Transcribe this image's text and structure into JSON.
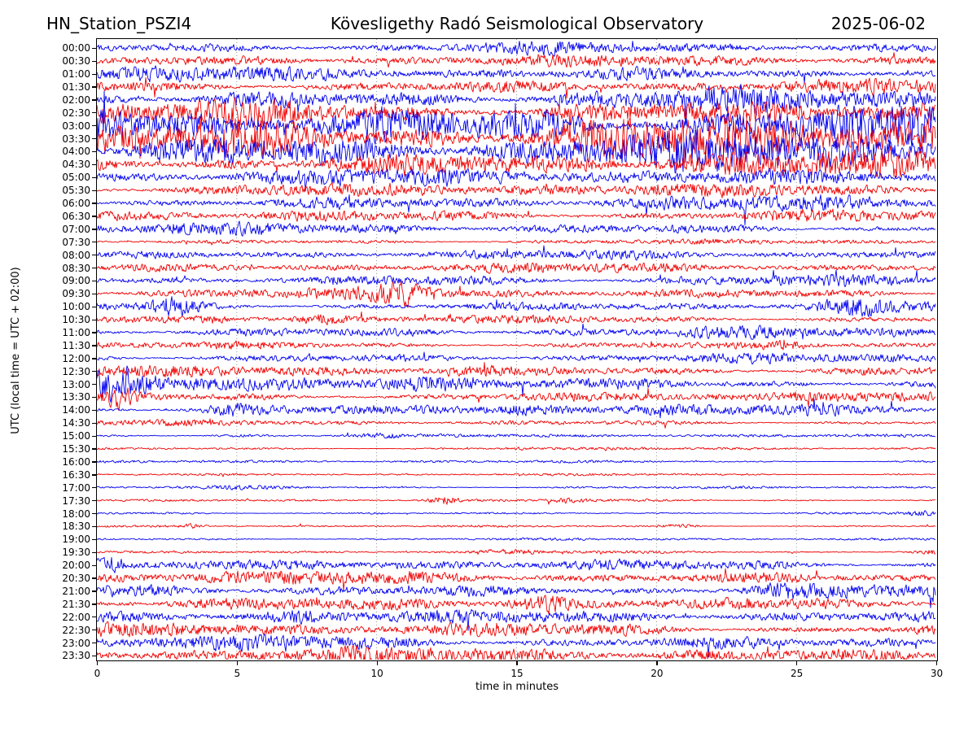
{
  "header": {
    "station": "HN_Station_PSZI4",
    "observatory": "Kövesligethy Radó Seismological Observatory",
    "date": "2025-06-02"
  },
  "axes": {
    "ylabel": "UTC (local time = UTC + 02:00)",
    "xlabel": "time in minutes",
    "x_ticks": [
      0,
      5,
      10,
      15,
      20,
      25,
      30
    ],
    "x_range": [
      0,
      30
    ],
    "grid_minutes": [
      5,
      10,
      15,
      20,
      25
    ],
    "grid_style": "dotted"
  },
  "colors": {
    "blue": "#0000ee",
    "red": "#ee0000",
    "grid": "#7a7a7a",
    "axis": "#000000",
    "background": "#ffffff"
  },
  "chart_data": {
    "type": "line",
    "subtype": "helicorder-seismogram",
    "title": "HN_Station_PSZI4 — Kövesligethy Radó Seismological Observatory — 2025-06-02",
    "xlabel": "time in minutes",
    "ylabel": "UTC (local time = UTC + 02:00)",
    "x_range_minutes": [
      0,
      30
    ],
    "rows_per_day": 48,
    "row_minutes": 30,
    "rows": [
      {
        "time": "00:00",
        "color": "blue",
        "amp": 4.5,
        "bursts": [
          [
            14,
            2,
            0.4
          ]
        ]
      },
      {
        "time": "00:30",
        "color": "red",
        "amp": 5.0,
        "bursts": []
      },
      {
        "time": "01:00",
        "color": "blue",
        "amp": 6.5,
        "bursts": [
          [
            28,
            1.5,
            0.5
          ]
        ]
      },
      {
        "time": "01:30",
        "color": "red",
        "amp": 6.5,
        "bursts": []
      },
      {
        "time": "02:00",
        "color": "blue",
        "amp": 9.0,
        "bursts": [
          [
            20,
            4,
            0.3
          ]
        ]
      },
      {
        "time": "02:30",
        "color": "red",
        "amp": 13.0,
        "bursts": []
      },
      {
        "time": "03:00",
        "color": "blue",
        "amp": 20.0,
        "bursts": []
      },
      {
        "time": "03:30",
        "color": "red",
        "amp": 21.0,
        "bursts": []
      },
      {
        "time": "04:00",
        "color": "blue",
        "amp": 17.0,
        "bursts": []
      },
      {
        "time": "04:30",
        "color": "red",
        "amp": 12.0,
        "bursts": []
      },
      {
        "time": "05:00",
        "color": "blue",
        "amp": 7.5,
        "bursts": []
      },
      {
        "time": "05:30",
        "color": "red",
        "amp": 6.0,
        "bursts": []
      },
      {
        "time": "06:00",
        "color": "blue",
        "amp": 6.5,
        "bursts": []
      },
      {
        "time": "06:30",
        "color": "red",
        "amp": 6.0,
        "bursts": []
      },
      {
        "time": "07:00",
        "color": "blue",
        "amp": 5.0,
        "bursts": []
      },
      {
        "time": "07:30",
        "color": "red",
        "amp": 2.3,
        "bursts": []
      },
      {
        "time": "08:00",
        "color": "blue",
        "amp": 3.8,
        "bursts": [
          [
            28,
            1,
            0.8
          ]
        ]
      },
      {
        "time": "08:30",
        "color": "red",
        "amp": 4.2,
        "bursts": []
      },
      {
        "time": "09:00",
        "color": "blue",
        "amp": 5.0,
        "bursts": [
          [
            13,
            1.5,
            0.5
          ]
        ]
      },
      {
        "time": "09:30",
        "color": "red",
        "amp": 4.5,
        "bursts": [
          [
            11,
            0.7,
            1.8
          ]
        ]
      },
      {
        "time": "10:00",
        "color": "blue",
        "amp": 4.5,
        "bursts": [
          [
            2.8,
            0.6,
            1.6
          ],
          [
            27,
            0.9,
            1.1
          ]
        ]
      },
      {
        "time": "10:30",
        "color": "red",
        "amp": 3.6,
        "bursts": [
          [
            8,
            0.6,
            1.2
          ]
        ]
      },
      {
        "time": "11:00",
        "color": "blue",
        "amp": 5.0,
        "bursts": []
      },
      {
        "time": "11:30",
        "color": "red",
        "amp": 3.6,
        "bursts": [
          [
            25,
            0.7,
            1.2
          ]
        ]
      },
      {
        "time": "12:00",
        "color": "blue",
        "amp": 4.2,
        "bursts": []
      },
      {
        "time": "12:30",
        "color": "red",
        "amp": 5.0,
        "bursts": [
          [
            7.5,
            1.2,
            1.2
          ],
          [
            12.5,
            1.2,
            1.0
          ]
        ]
      },
      {
        "time": "13:00",
        "color": "blue",
        "amp": 6.0,
        "bursts": [
          [
            0.6,
            0.8,
            1.6
          ],
          [
            11,
            1.5,
            1.2
          ]
        ]
      },
      {
        "time": "13:30",
        "color": "red",
        "amp": 4.5,
        "bursts": [
          [
            0.8,
            0.4,
            1.8
          ],
          [
            26,
            1,
            1.2
          ]
        ]
      },
      {
        "time": "14:00",
        "color": "blue",
        "amp": 4.2,
        "bursts": [
          [
            5,
            0.7,
            1.2
          ],
          [
            15,
            0.9,
            1.2
          ],
          [
            20,
            0.9,
            1.1
          ],
          [
            26,
            0.9,
            1.1
          ]
        ]
      },
      {
        "time": "14:30",
        "color": "red",
        "amp": 2.6,
        "bursts": []
      },
      {
        "time": "15:00",
        "color": "blue",
        "amp": 1.5,
        "bursts": [
          [
            5,
            0.7,
            1.2
          ],
          [
            10,
            0.5,
            1.2
          ]
        ]
      },
      {
        "time": "15:30",
        "color": "red",
        "amp": 1.2,
        "bursts": [
          [
            15,
            0.3,
            1.5
          ]
        ]
      },
      {
        "time": "16:00",
        "color": "blue",
        "amp": 1.2,
        "bursts": []
      },
      {
        "time": "16:30",
        "color": "red",
        "amp": 1.0,
        "bursts": []
      },
      {
        "time": "17:00",
        "color": "blue",
        "amp": 1.3,
        "bursts": [
          [
            5,
            1.5,
            0.8
          ]
        ]
      },
      {
        "time": "17:30",
        "color": "red",
        "amp": 1.1,
        "bursts": [
          [
            12.4,
            0.4,
            4.5
          ],
          [
            16.9,
            0.4,
            1.8
          ]
        ]
      },
      {
        "time": "18:00",
        "color": "blue",
        "amp": 1.0,
        "bursts": [
          [
            10,
            0.5,
            1.3
          ],
          [
            29.6,
            0.5,
            2.2
          ]
        ]
      },
      {
        "time": "18:30",
        "color": "red",
        "amp": 1.0,
        "bursts": [
          [
            3.4,
            0.25,
            1.6
          ],
          [
            21,
            0.55,
            4.5
          ]
        ]
      },
      {
        "time": "19:00",
        "color": "blue",
        "amp": 1.1,
        "bursts": []
      },
      {
        "time": "19:30",
        "color": "red",
        "amp": 1.2,
        "bursts": [
          [
            14.8,
            0.7,
            1.6
          ],
          [
            29.7,
            0.5,
            2.5
          ]
        ]
      },
      {
        "time": "20:00",
        "color": "blue",
        "amp": 4.6,
        "bursts": [
          [
            0.4,
            0.35,
            2.2
          ]
        ]
      },
      {
        "time": "20:30",
        "color": "red",
        "amp": 6.2,
        "bursts": []
      },
      {
        "time": "21:00",
        "color": "blue",
        "amp": 6.2,
        "bursts": [
          [
            24,
            0.9,
            1.2
          ]
        ]
      },
      {
        "time": "21:30",
        "color": "red",
        "amp": 5.2,
        "bursts": [
          [
            15.9,
            0.8,
            1.6
          ],
          [
            26,
            0.9,
            1.4
          ]
        ]
      },
      {
        "time": "22:00",
        "color": "blue",
        "amp": 5.6,
        "bursts": [
          [
            7.5,
            1,
            0.8
          ]
        ]
      },
      {
        "time": "22:30",
        "color": "red",
        "amp": 6.2,
        "bursts": []
      },
      {
        "time": "23:00",
        "color": "blue",
        "amp": 6.8,
        "bursts": []
      },
      {
        "time": "23:30",
        "color": "red",
        "amp": 7.2,
        "bursts": []
      }
    ]
  }
}
